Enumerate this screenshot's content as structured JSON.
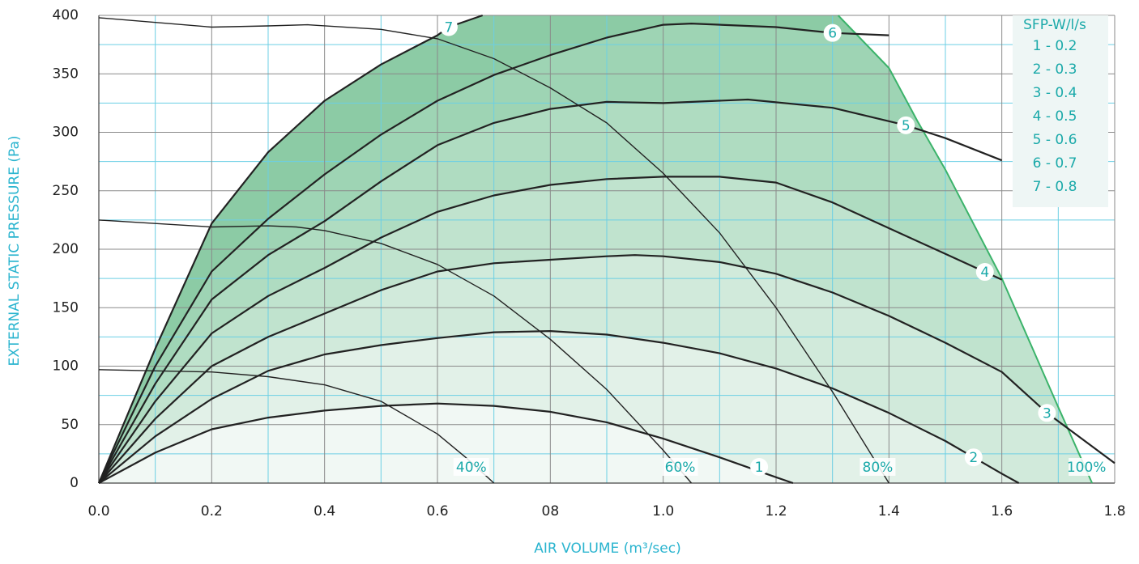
{
  "chart_data": {
    "type": "line",
    "x_title": "AIR VOLUME (m³/sec)",
    "y_title": "EXTERNAL STATIC PRESSURE (Pa)",
    "xlim": [
      0,
      1.8
    ],
    "ylim": [
      0,
      400
    ],
    "xticks": [
      {
        "value": 0,
        "label": "0.0"
      },
      0.2,
      0.4,
      0.6,
      {
        "value": 0.8,
        "label": "08"
      },
      {
        "value": 1,
        "label": "1.0"
      },
      1.2,
      1.4,
      1.6,
      1.8
    ],
    "yticks": [
      0,
      50,
      100,
      150,
      200,
      250,
      300,
      350,
      400
    ],
    "xminorticks": [
      0.1,
      0.3,
      0.5,
      0.7,
      0.9,
      1.1,
      1.3,
      1.5,
      1.7
    ],
    "yminorticks": [
      25,
      75,
      125,
      175,
      225,
      275,
      325,
      375
    ],
    "grid": true,
    "legend": {
      "title": "SFP-W/l/s",
      "entries": [
        "1 - 0.2",
        "2 - 0.3",
        "3 - 0.4",
        "4 - 0.5",
        "5 - 0.6",
        "6 - 0.7",
        "7 - 0.8"
      ]
    },
    "series": [
      {
        "name": "1",
        "color": "#222222",
        "fill": "#f1f8f4",
        "x": [
          0,
          0.1,
          0.2,
          0.3,
          0.4,
          0.5,
          0.6,
          0.7,
          0.8,
          0.9,
          1.0,
          1.1,
          1.2,
          1.23
        ],
        "values": [
          0,
          26,
          46,
          56,
          62,
          66,
          68,
          66,
          61,
          52,
          38,
          22,
          5,
          0
        ]
      },
      {
        "name": "2",
        "color": "#222222",
        "fill": "#e2f1e8",
        "x": [
          0,
          0.1,
          0.2,
          0.3,
          0.4,
          0.5,
          0.6,
          0.7,
          0.8,
          0.9,
          1.0,
          1.1,
          1.2,
          1.3,
          1.4,
          1.5,
          1.55,
          1.6,
          1.63
        ],
        "values": [
          0,
          40,
          72,
          96,
          110,
          118,
          124,
          129,
          130,
          127,
          120,
          111,
          98,
          81,
          60,
          36,
          22,
          8,
          0
        ]
      },
      {
        "name": "3",
        "color": "#222222",
        "fill": "#d1eadb",
        "x": [
          0,
          0.1,
          0.2,
          0.3,
          0.4,
          0.5,
          0.6,
          0.7,
          0.8,
          0.9,
          0.95,
          1.0,
          1.1,
          1.2,
          1.3,
          1.4,
          1.5,
          1.6,
          1.68,
          1.8
        ],
        "values": [
          0,
          55,
          100,
          125,
          145,
          165,
          181,
          188,
          191,
          194,
          195,
          194,
          189,
          179,
          163,
          143,
          120,
          95,
          60,
          17
        ]
      },
      {
        "name": "4",
        "color": "#222222",
        "fill": "#c0e3ce",
        "x": [
          0,
          0.1,
          0.2,
          0.3,
          0.4,
          0.5,
          0.6,
          0.7,
          0.8,
          0.9,
          1.0,
          1.1,
          1.2,
          1.3,
          1.4,
          1.5,
          1.6
        ],
        "values": [
          0,
          70,
          128,
          160,
          184,
          210,
          232,
          246,
          255,
          260,
          262,
          262,
          257,
          240,
          218,
          196,
          174
        ]
      },
      {
        "name": "5",
        "color": "#222222",
        "fill": "#afdcc1",
        "x": [
          0,
          0.1,
          0.2,
          0.3,
          0.4,
          0.5,
          0.6,
          0.7,
          0.8,
          0.9,
          1.0,
          1.15,
          1.3,
          1.43,
          1.5,
          1.6
        ],
        "values": [
          0,
          85,
          157,
          195,
          224,
          258,
          289,
          308,
          320,
          326,
          325,
          328,
          321,
          306,
          295,
          276
        ]
      },
      {
        "name": "6",
        "color": "#222222",
        "fill": "#9ed4b4",
        "x": [
          0,
          0.1,
          0.2,
          0.3,
          0.4,
          0.5,
          0.6,
          0.7,
          0.8,
          0.9,
          1.0,
          1.05,
          1.2,
          1.3,
          1.4
        ],
        "values": [
          0,
          100,
          181,
          226,
          264,
          298,
          327,
          349,
          366,
          381,
          392,
          393,
          390,
          385,
          383
        ]
      },
      {
        "name": "7",
        "color": "#222222",
        "fill": "#8ccba5",
        "x": [
          0,
          0.1,
          0.2,
          0.3,
          0.4,
          0.5,
          0.6,
          0.62,
          0.68
        ],
        "values": [
          0,
          115,
          222,
          283,
          327,
          358,
          383,
          390,
          400
        ]
      }
    ],
    "speed_curves": [
      {
        "name": "40%",
        "color": "#222222",
        "x": [
          0,
          0.1,
          0.2,
          0.3,
          0.4,
          0.5,
          0.6,
          0.65,
          0.7
        ],
        "values": [
          97,
          96,
          95,
          91,
          84,
          70,
          42,
          22,
          0
        ]
      },
      {
        "name": "60%",
        "color": "#222222",
        "x": [
          0,
          0.1,
          0.2,
          0.3,
          0.35,
          0.4,
          0.5,
          0.6,
          0.7,
          0.8,
          0.9,
          1.0,
          1.05
        ],
        "values": [
          225,
          222,
          219,
          220,
          219,
          216,
          205,
          187,
          160,
          123,
          80,
          28,
          0
        ]
      },
      {
        "name": "80%",
        "color": "#222222",
        "x": [
          0,
          0.2,
          0.3,
          0.37,
          0.5,
          0.6,
          0.7,
          0.8,
          0.9,
          1.0,
          1.1,
          1.2,
          1.3,
          1.4
        ],
        "values": [
          398,
          390,
          391,
          392,
          388,
          380,
          363,
          338,
          308,
          265,
          214,
          150,
          78,
          0
        ]
      },
      {
        "name": "100%",
        "color": "#3bb36a",
        "x": [
          1.31,
          1.4,
          1.45,
          1.5,
          1.6,
          1.7,
          1.76
        ],
        "values": [
          400,
          355,
          310,
          268,
          175,
          65,
          0
        ]
      }
    ]
  }
}
